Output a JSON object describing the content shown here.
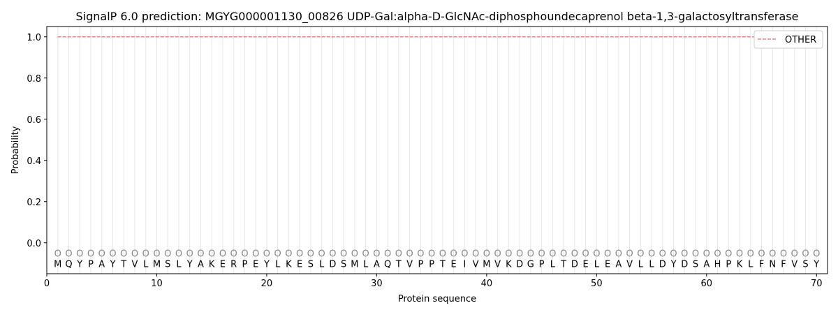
{
  "chart_data": {
    "type": "line",
    "title": "SignalP 6.0 prediction: MGYG000001130_00826 UDP-Gal:alpha-D-GlcNAc-diphosphoundecaprenol beta-1,3-galactosyltransferase",
    "xlabel": "Protein sequence",
    "ylabel": "Probability",
    "xlim": [
      0,
      71
    ],
    "ylim": [
      -0.15,
      1.05
    ],
    "xticks": [
      0,
      10,
      20,
      30,
      40,
      50,
      60,
      70
    ],
    "yticks": [
      "0.0",
      "0.2",
      "0.4",
      "0.6",
      "0.8",
      "1.0"
    ],
    "grid": "vertical lines at each residue",
    "legend_position": "top-right",
    "sequence": [
      "M",
      "Q",
      "Y",
      "P",
      "A",
      "Y",
      "T",
      "V",
      "L",
      "M",
      "S",
      "L",
      "Y",
      "A",
      "K",
      "E",
      "R",
      "P",
      "E",
      "Y",
      "L",
      "K",
      "E",
      "S",
      "L",
      "D",
      "S",
      "M",
      "L",
      "A",
      "Q",
      "T",
      "V",
      "P",
      "P",
      "T",
      "E",
      "I",
      "V",
      "M",
      "V",
      "K",
      "D",
      "G",
      "P",
      "L",
      "T",
      "D",
      "E",
      "L",
      "E",
      "A",
      "V",
      "L",
      "L",
      "D",
      "Y",
      "D",
      "S",
      "A",
      "H",
      "P",
      "K",
      "L",
      "F",
      "N",
      "F",
      "V",
      "S",
      "Y"
    ],
    "predicted_label": "O",
    "series": [
      {
        "name": "OTHER",
        "color": "#f08080",
        "style": "dashed",
        "x_start": 1,
        "x_end": 70,
        "value": 1.0
      }
    ]
  }
}
